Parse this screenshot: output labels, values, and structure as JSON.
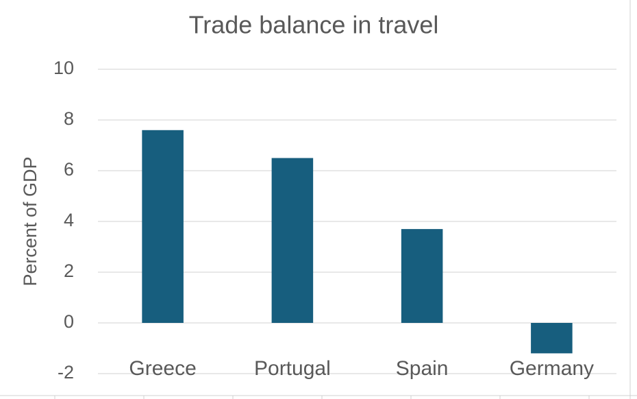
{
  "chart_data": {
    "type": "bar",
    "title": "Trade balance in travel",
    "y_label": "Percent of GDP",
    "categories": [
      "Greece",
      "Portugal",
      "Spain",
      "Germany"
    ],
    "values": [
      7.6,
      6.5,
      3.7,
      -1.2
    ],
    "color": "#175e7e",
    "ylim": [
      -2,
      10
    ],
    "yticks": [
      -2,
      0,
      2,
      4,
      6,
      8,
      10
    ],
    "grid": true
  }
}
